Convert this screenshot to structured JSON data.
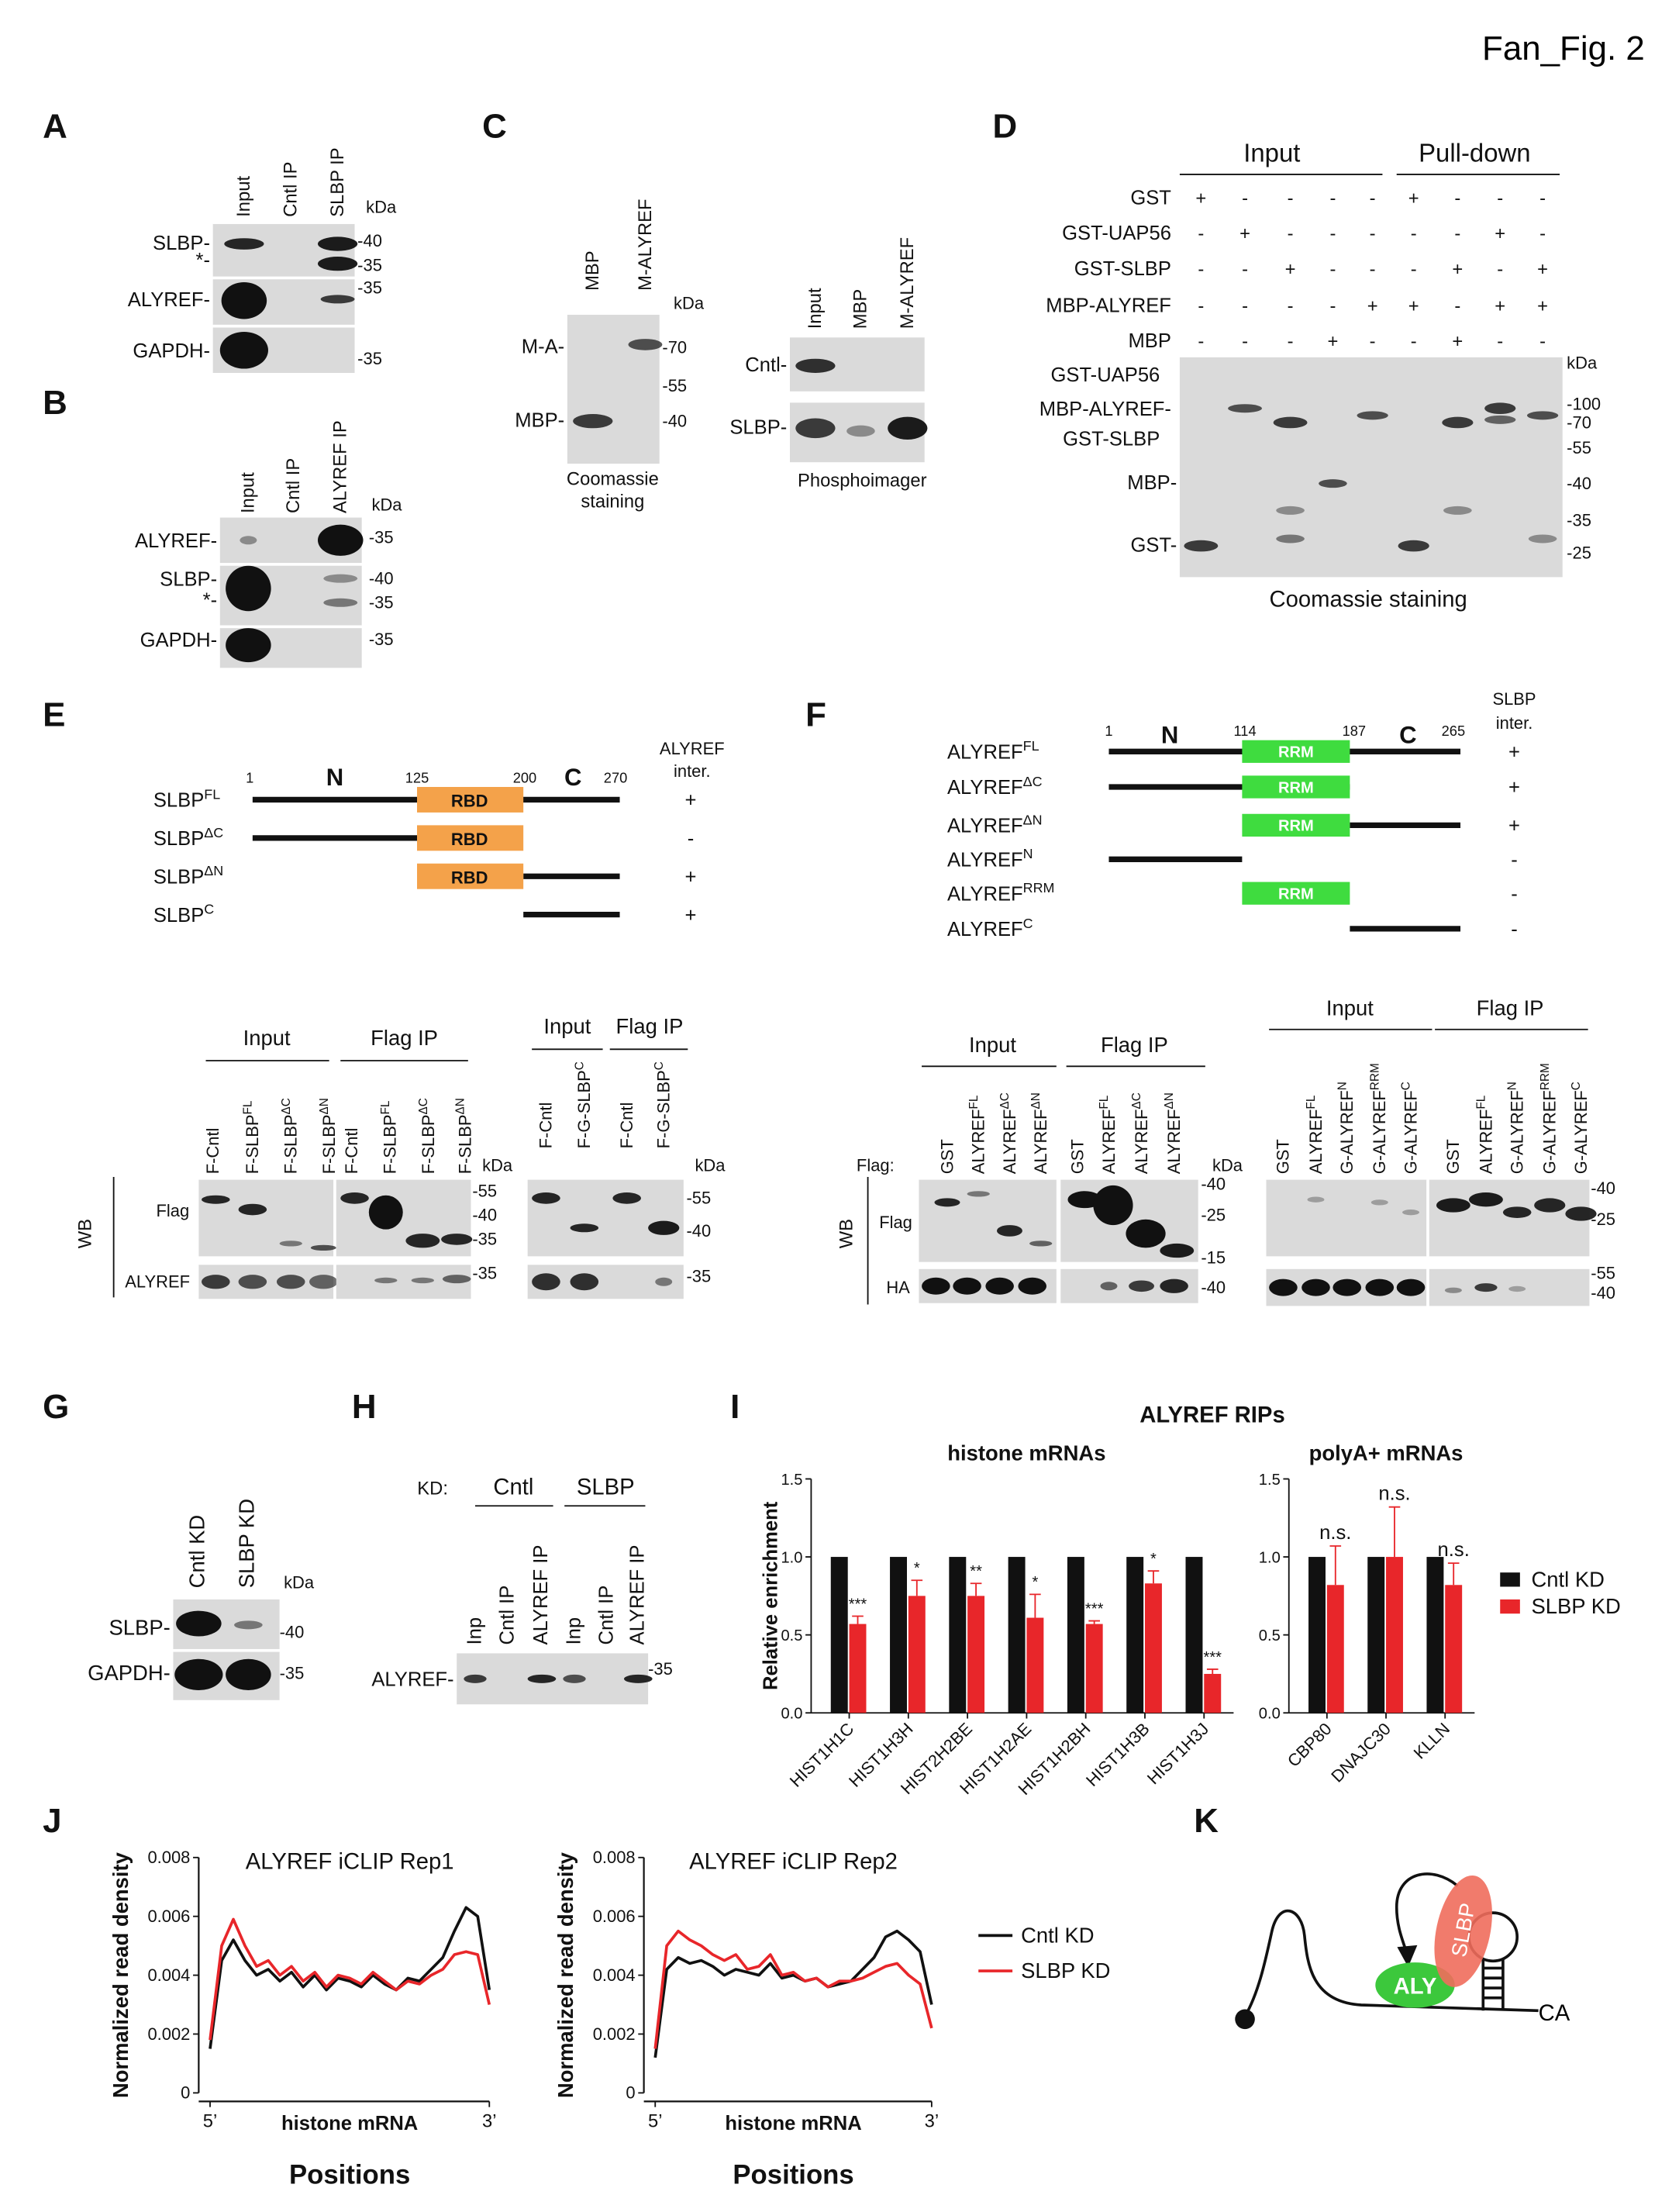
{
  "header": {
    "title": "Fan_Fig. 2"
  },
  "panel_labels": [
    "A",
    "B",
    "C",
    "D",
    "E",
    "F",
    "G",
    "H",
    "I",
    "J",
    "K"
  ],
  "panel_A": {
    "lanes": [
      "Input",
      "Cntl IP",
      "SLBP IP"
    ],
    "rows": [
      "SLBP-",
      "*-",
      "ALYREF-",
      "GAPDH-"
    ],
    "unit": "kDa",
    "markers": [
      "-40",
      "-35",
      "-35",
      "-35"
    ]
  },
  "panel_B": {
    "lanes": [
      "Input",
      "Cntl IP",
      "ALYREF IP"
    ],
    "rows": [
      "ALYREF-",
      "SLBP-",
      "*-",
      "GAPDH-"
    ],
    "unit": "kDa",
    "markers": [
      "-35",
      "-40",
      "-35",
      "-35"
    ]
  },
  "panel_C": {
    "coomassie": {
      "lanes": [
        "MBP",
        "M-ALYREF"
      ],
      "rows": [
        "M-A-",
        "MBP-"
      ],
      "unit": "kDa",
      "markers": [
        "-70",
        "-55",
        "-40"
      ],
      "caption": [
        "Coomassie",
        "staining"
      ]
    },
    "phosphoimager": {
      "lanes": [
        "Input",
        "MBP",
        "M-ALYREF"
      ],
      "rows": [
        "Cntl-",
        "SLBP-"
      ],
      "caption": "Phosphoimager"
    }
  },
  "panel_D": {
    "groups": [
      "Input",
      "Pull-down"
    ],
    "rows": [
      {
        "label": "GST",
        "signs": [
          "+",
          "-",
          "-",
          "-",
          "-",
          "+",
          "-",
          "-",
          "-"
        ]
      },
      {
        "label": "GST-UAP56",
        "signs": [
          "-",
          "+",
          "-",
          "-",
          "-",
          "-",
          "-",
          "+",
          "-"
        ]
      },
      {
        "label": "GST-SLBP",
        "signs": [
          "-",
          "-",
          "+",
          "-",
          "-",
          "-",
          "+",
          "-",
          "+"
        ]
      },
      {
        "label": "MBP-ALYREF",
        "signs": [
          "-",
          "-",
          "-",
          "-",
          "+",
          "+",
          "-",
          "+",
          "+"
        ]
      },
      {
        "label": "MBP",
        "signs": [
          "-",
          "-",
          "-",
          "+",
          "-",
          "-",
          "+",
          "-",
          "-"
        ]
      }
    ],
    "unit": "kDa",
    "markers": [
      "-100",
      "-70",
      "-55",
      "-40",
      "-35",
      "-25"
    ],
    "bands": [
      "GST-UAP56",
      "MBP-ALYREF-",
      "GST-SLBP",
      "MBP-",
      "GST-"
    ],
    "caption": "Coomassie staining"
  },
  "panel_E": {
    "header": [
      "ALYREF",
      "inter."
    ],
    "positions": [
      "1",
      "125",
      "200",
      "270"
    ],
    "regions": [
      "N",
      "C"
    ],
    "domain": "RBD",
    "constructs": [
      {
        "base": "SLBP",
        "sup": "FL",
        "interaction": "+"
      },
      {
        "base": "SLBP",
        "sup": "ΔC",
        "interaction": "-"
      },
      {
        "base": "SLBP",
        "sup": "ΔN",
        "interaction": "+"
      },
      {
        "base": "SLBP",
        "sup": "C",
        "interaction": "+"
      }
    ],
    "blot1": {
      "groups": [
        "Input",
        "Flag IP"
      ],
      "lanes": [
        "F-Cntl",
        {
          "base": "F-SLBP",
          "sup": "FL"
        },
        {
          "base": "F-SLBP",
          "sup": "ΔC"
        },
        {
          "base": "F-SLBP",
          "sup": "ΔN"
        },
        "F-Cntl",
        {
          "base": "F-SLBP",
          "sup": "FL"
        },
        {
          "base": "F-SLBP",
          "sup": "ΔC"
        },
        {
          "base": "F-SLBP",
          "sup": "ΔN"
        }
      ],
      "unit": "kDa",
      "side": "WB",
      "rows": [
        "Flag",
        "ALYREF"
      ],
      "markers": [
        "-55",
        "-40",
        "-35",
        "-35"
      ]
    },
    "blot2": {
      "groups": [
        "Input",
        "Flag IP"
      ],
      "lanes": [
        "F-Cntl",
        {
          "base": "F-G-SLBP",
          "sup": "C"
        },
        "F-Cntl",
        {
          "base": "F-G-SLBP",
          "sup": "C"
        }
      ],
      "unit": "kDa",
      "markers": [
        "-55",
        "-40",
        "-35"
      ]
    }
  },
  "panel_F": {
    "header": [
      "SLBP",
      "inter."
    ],
    "positions": [
      "1",
      "114",
      "187",
      "265"
    ],
    "regions": [
      "N",
      "C"
    ],
    "domain": "RRM",
    "constructs": [
      {
        "base": "ALYREF",
        "sup": "FL",
        "interaction": "+"
      },
      {
        "base": "ALYREF",
        "sup": "ΔC",
        "interaction": "+"
      },
      {
        "base": "ALYREF",
        "sup": "ΔN",
        "interaction": "+"
      },
      {
        "base": "ALYREF",
        "sup": "N",
        "interaction": "-"
      },
      {
        "base": "ALYREF",
        "sup": "RRM",
        "interaction": "-"
      },
      {
        "base": "ALYREF",
        "sup": "C",
        "interaction": "-"
      }
    ],
    "blot1": {
      "groups": [
        "Input",
        "Flag IP"
      ],
      "tag": "Flag:",
      "lanes": [
        "GST",
        {
          "base": "ALYREF",
          "sup": "FL"
        },
        {
          "base": "ALYREF",
          "sup": "ΔC"
        },
        {
          "base": "ALYREF",
          "sup": "ΔN"
        },
        "GST",
        {
          "base": "ALYREF",
          "sup": "FL"
        },
        {
          "base": "ALYREF",
          "sup": "ΔC"
        },
        {
          "base": "ALYREF",
          "sup": "ΔN"
        }
      ],
      "unit": "kDa",
      "side": "WB",
      "rows": [
        "Flag",
        "HA"
      ],
      "markers": [
        "-40",
        "-25",
        "-15",
        "-40"
      ]
    },
    "blot2": {
      "groups": [
        "Input",
        "Flag IP"
      ],
      "lanes": [
        "GST",
        {
          "base": "ALYREF",
          "sup": "FL"
        },
        {
          "base": "G-ALYREF",
          "sup": "N"
        },
        {
          "base": "G-ALYREF",
          "sup": "RRM"
        },
        {
          "base": "G-ALYREF",
          "sup": "C"
        },
        "GST",
        {
          "base": "ALYREF",
          "sup": "FL"
        },
        {
          "base": "G-ALYREF",
          "sup": "N"
        },
        {
          "base": "G-ALYREF",
          "sup": "RRM"
        },
        {
          "base": "G-ALYREF",
          "sup": "C"
        }
      ],
      "markers": [
        "-40",
        "-25",
        "-55",
        "-40"
      ]
    }
  },
  "panel_G": {
    "lanes": [
      "Cntl KD",
      "SLBP KD"
    ],
    "unit": "kDa",
    "rows": [
      "SLBP-",
      "GAPDH-"
    ],
    "markers": [
      "-40",
      "-35"
    ]
  },
  "panel_H": {
    "tag": "KD:",
    "groups": [
      "Cntl",
      "SLBP"
    ],
    "lanes": [
      "Inp",
      "Cntl IP",
      "ALYREF IP",
      "Inp",
      "Cntl IP",
      "ALYREF IP"
    ],
    "rows": [
      "ALYREF-"
    ],
    "markers": [
      "-35"
    ]
  },
  "panel_I": {
    "title": "ALYREF RIPs"
  },
  "panel_K": {
    "labels": [
      "ALY",
      "SLBP",
      "CA"
    ]
  },
  "chart_data": [
    {
      "type": "bar",
      "title": "histone mRNAs",
      "ylabel": "Relative enrichment",
      "categories": [
        "HIST1H1C",
        "HIST1H3H",
        "HIST2H2BE",
        "HIST1H2AE",
        "HIST1H2BH",
        "HIST1H3B",
        "HIST1H3J"
      ],
      "series": [
        {
          "color": "#111111",
          "values": [
            1,
            1,
            1,
            1,
            1,
            1,
            1
          ]
        },
        {
          "color": "#e8262a",
          "values": [
            0.57,
            0.75,
            0.75,
            0.61,
            0.57,
            0.83,
            0.25
          ],
          "errors": [
            0.05,
            0.1,
            0.08,
            0.15,
            0.02,
            0.08,
            0.03
          ],
          "significance": [
            "***",
            "*",
            "**",
            "*",
            "***",
            "*",
            "***"
          ]
        }
      ],
      "ylim": [
        0,
        1.5
      ],
      "yticks": [
        {
          "value": 0,
          "label": "0.0"
        },
        0.5,
        {
          "value": 1,
          "label": "1.0"
        },
        1.5
      ]
    },
    {
      "type": "bar",
      "title": "polyA+ mRNAs",
      "categories": [
        "CBP80",
        "DNAJC30",
        "KLLN"
      ],
      "series": [
        {
          "name": "Cntl KD",
          "color": "#111111",
          "values": [
            1,
            1,
            1
          ]
        },
        {
          "name": "SLBP KD",
          "color": "#e8262a",
          "values": [
            0.82,
            1,
            0.82
          ],
          "errors": [
            0.25,
            0.32,
            0.14
          ],
          "significance": [
            "n.s.",
            "n.s.",
            "n.s."
          ]
        }
      ],
      "ylim": [
        0,
        1.5
      ],
      "yticks": [
        {
          "value": 0,
          "label": "0.0"
        },
        0.5,
        {
          "value": 1,
          "label": "1.0"
        },
        1.5
      ],
      "legend": "right"
    },
    {
      "type": "line",
      "title": "ALYREF iCLIP Rep1",
      "ylabel": "Normalized read density",
      "x_annotation": "histone mRNA",
      "xlabel": "Positions",
      "x": [
        0,
        1,
        2,
        3,
        4,
        5,
        6,
        7,
        8,
        9,
        10,
        11,
        12,
        13,
        14,
        15,
        16,
        17,
        18,
        19,
        20,
        21,
        22,
        23,
        24
      ],
      "xlim": [
        0,
        24
      ],
      "xticks": [
        {
          "value": 0,
          "label": "5’"
        },
        {
          "value": 24,
          "label": "3’"
        }
      ],
      "ylim": [
        0,
        0.008
      ],
      "yticks": [
        0,
        0.002,
        0.004,
        0.006,
        0.008
      ],
      "series": [
        {
          "color": "#111111",
          "values": [
            0.0015,
            0.0045,
            0.0052,
            0.0045,
            0.004,
            0.0042,
            0.0038,
            0.0041,
            0.0036,
            0.004,
            0.0035,
            0.0039,
            0.0038,
            0.0036,
            0.004,
            0.0037,
            0.0035,
            0.0039,
            0.0038,
            0.0042,
            0.0046,
            0.0055,
            0.0063,
            0.006,
            0.0035
          ]
        },
        {
          "color": "#e8262a",
          "values": [
            0.0018,
            0.005,
            0.0059,
            0.005,
            0.0043,
            0.0045,
            0.004,
            0.0043,
            0.0038,
            0.0041,
            0.0036,
            0.004,
            0.0039,
            0.0037,
            0.0041,
            0.0038,
            0.0035,
            0.0038,
            0.0037,
            0.004,
            0.0042,
            0.0047,
            0.0048,
            0.0047,
            0.003
          ]
        }
      ]
    },
    {
      "type": "line",
      "title": "ALYREF iCLIP Rep2",
      "ylabel": "Normalized read density",
      "x_annotation": "histone mRNA",
      "xlabel": "Positions",
      "x": [
        0,
        1,
        2,
        3,
        4,
        5,
        6,
        7,
        8,
        9,
        10,
        11,
        12,
        13,
        14,
        15,
        16,
        17,
        18,
        19,
        20,
        21,
        22,
        23,
        24
      ],
      "xlim": [
        0,
        24
      ],
      "xticks": [
        {
          "value": 0,
          "label": "5’"
        },
        {
          "value": 24,
          "label": "3’"
        }
      ],
      "ylim": [
        0,
        0.008
      ],
      "yticks": [
        0,
        0.002,
        0.004,
        0.006,
        0.008
      ],
      "series": [
        {
          "name": "Cntl KD",
          "color": "#111111",
          "values": [
            0.0012,
            0.0042,
            0.0046,
            0.0044,
            0.0045,
            0.0043,
            0.004,
            0.0042,
            0.0041,
            0.004,
            0.0044,
            0.0039,
            0.004,
            0.0038,
            0.0039,
            0.0036,
            0.0037,
            0.0038,
            0.0042,
            0.0046,
            0.0053,
            0.0055,
            0.0052,
            0.0048,
            0.003
          ]
        },
        {
          "name": "SLBP KD",
          "color": "#e8262a",
          "values": [
            0.0015,
            0.005,
            0.0055,
            0.0052,
            0.005,
            0.0047,
            0.0045,
            0.0047,
            0.0042,
            0.0043,
            0.0047,
            0.004,
            0.0041,
            0.0038,
            0.0039,
            0.0036,
            0.0038,
            0.0038,
            0.0039,
            0.0041,
            0.0043,
            0.0044,
            0.004,
            0.0037,
            0.0022
          ]
        }
      ],
      "legend": "right"
    }
  ]
}
